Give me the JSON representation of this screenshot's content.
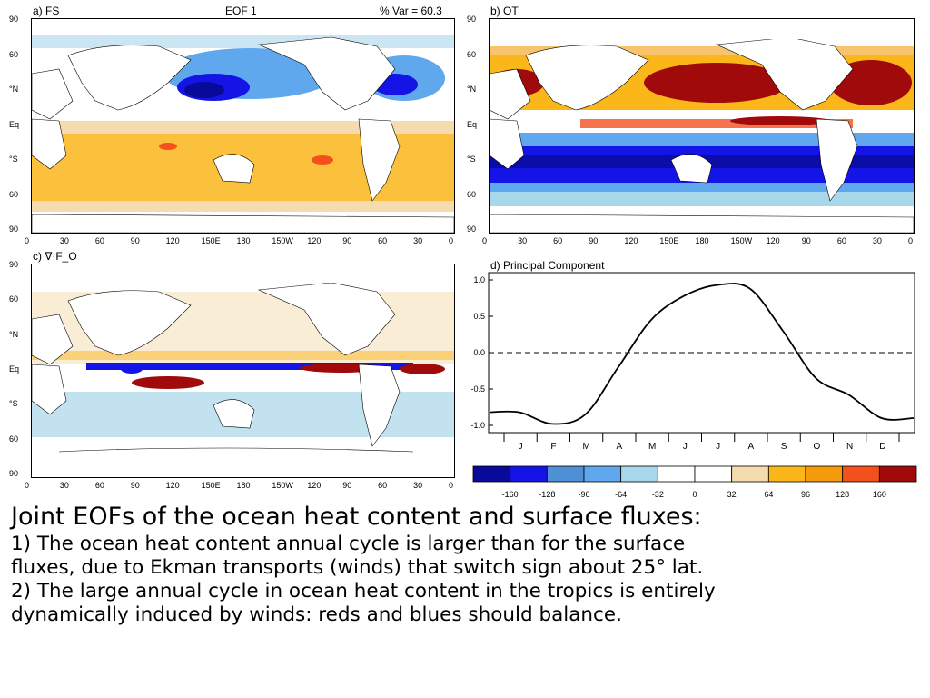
{
  "panels": {
    "a": {
      "label": "a) FS",
      "center": "EOF 1",
      "right": "% Var = 60.3"
    },
    "b": {
      "label": "b) OT"
    },
    "c": {
      "label": "c) ∇·F_O"
    },
    "d": {
      "label": "d) Principal Component"
    }
  },
  "map_axes": {
    "lat_labels": [
      "90",
      "60",
      "°N",
      "Eq",
      "°S",
      "60",
      "90"
    ],
    "lon_labels": [
      "0",
      "30",
      "60",
      "90",
      "120",
      "150E",
      "180",
      "150W",
      "120",
      "90",
      "60",
      "30",
      "0"
    ]
  },
  "colorbar": {
    "colors": [
      "#0a0a9a",
      "#1414e6",
      "#4f8fd6",
      "#5fa8ee",
      "#a8d6ea",
      "#ffffff",
      "#ffffff",
      "#f4dcae",
      "#fbb61a",
      "#f49b0c",
      "#f4501e",
      "#a00a0a"
    ],
    "labels": [
      "-160",
      "-128",
      "-96",
      "-64",
      "-32",
      "0",
      "32",
      "64",
      "96",
      "128",
      "160"
    ]
  },
  "chart_data": {
    "type": "line",
    "title": "d) Principal Component",
    "categories": [
      "J",
      "F",
      "M",
      "A",
      "M",
      "J",
      "J",
      "A",
      "S",
      "O",
      "N",
      "D"
    ],
    "y_ticks": [
      "1.0",
      "0.5",
      "0.0",
      "-0.5",
      "-1.0"
    ],
    "ylim": [
      -1.1,
      1.1
    ],
    "zero_line": "dashed",
    "series": [
      {
        "values": [
          -0.82,
          -0.98,
          -0.85,
          -0.2,
          0.45,
          0.78,
          0.93,
          0.88,
          0.3,
          -0.35,
          -0.58,
          -0.9
        ]
      }
    ]
  },
  "caption": {
    "title": "Joint EOFs of the ocean heat content and surface fluxes:",
    "line1": "1) The ocean heat content annual cycle is larger than for the surface",
    "line2": "fluxes, due to Ekman transports (winds) that switch sign about 25° lat.",
    "line3": "2) The large annual cycle in ocean heat content in the tropics is entirely",
    "line4": "dynamically induced by winds: reds and blues should balance."
  }
}
